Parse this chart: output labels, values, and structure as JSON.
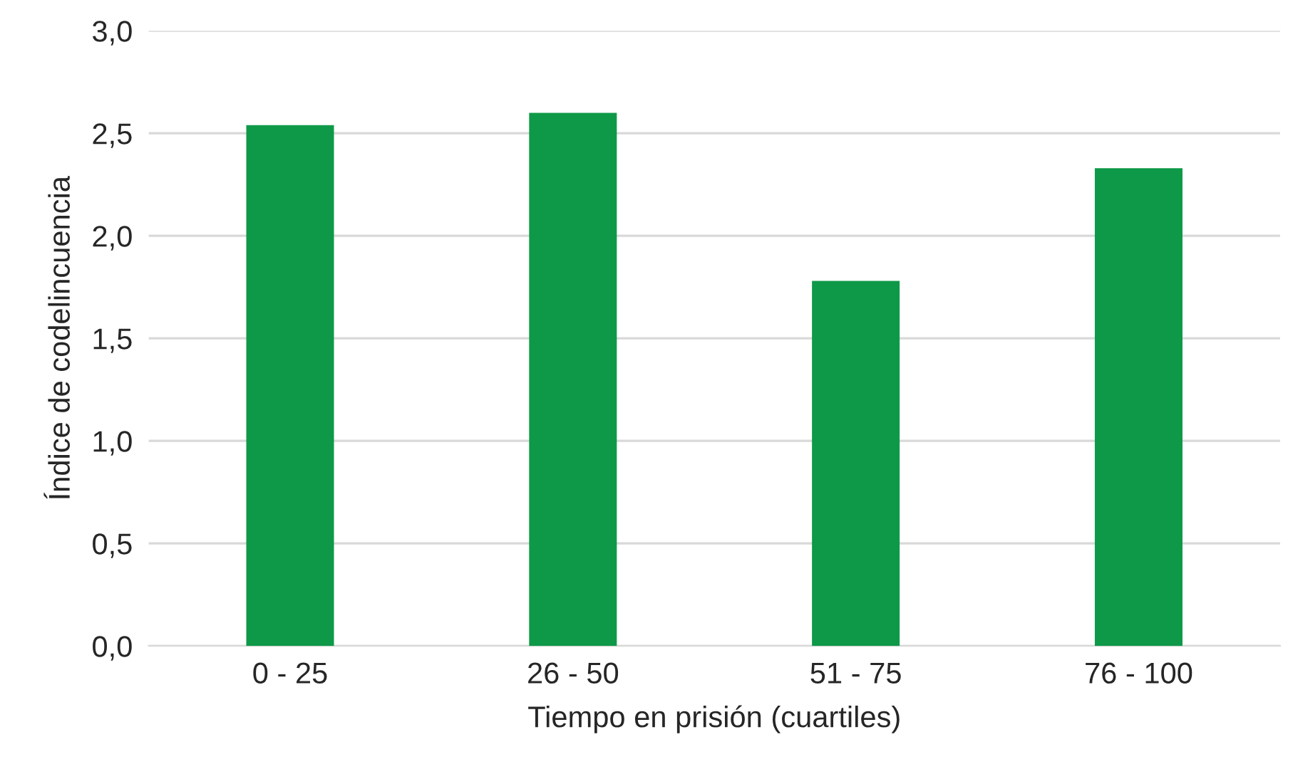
{
  "chart_data": {
    "type": "bar",
    "xlabel": "Tiempo en prisión (cuartiles)",
    "ylabel": "Índice de codelincuencia",
    "categories": [
      "0 - 25",
      "26 - 50",
      "51 - 75",
      "76 - 100"
    ],
    "values": [
      2.54,
      2.6,
      1.78,
      2.33
    ],
    "color": "#0e9948",
    "ylim": [
      0,
      3
    ],
    "yticks": [
      {
        "value": 0,
        "label": "0,0"
      },
      {
        "value": 0.5,
        "label": "0,5"
      },
      {
        "value": 1,
        "label": "1,0"
      },
      {
        "value": 1.5,
        "label": "1,5"
      },
      {
        "value": 2,
        "label": "2,0"
      },
      {
        "value": 2.5,
        "label": "2,5"
      },
      {
        "value": 3,
        "label": "3,0"
      }
    ],
    "grid": "y"
  }
}
